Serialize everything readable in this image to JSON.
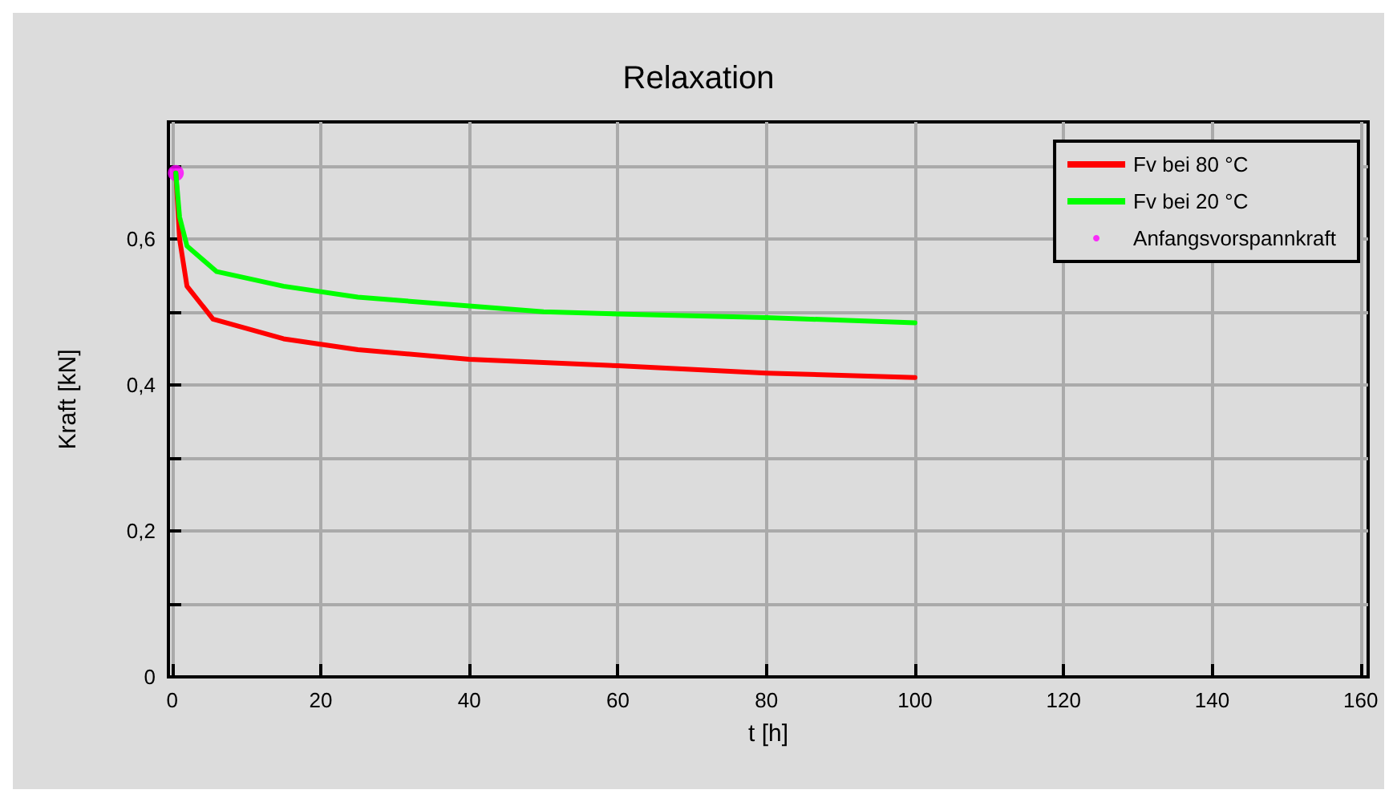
{
  "chart_data": {
    "type": "line",
    "title": "Relaxation",
    "xlabel": "t [h]",
    "ylabel": "Kraft [kN]",
    "xlim": [
      -0.5,
      161
    ],
    "xticks": [
      0,
      20,
      40,
      60,
      80,
      100,
      120,
      140,
      160
    ],
    "ylim": [
      0,
      0.76
    ],
    "yticks": [
      0,
      {
        "value": 0.1,
        "label": null
      },
      {
        "value": 0.2,
        "label": "0,2"
      },
      {
        "value": 0.3,
        "label": null
      },
      {
        "value": 0.4,
        "label": "0,4"
      },
      {
        "value": 0.5,
        "label": null
      },
      {
        "value": 0.6,
        "label": "0,6"
      },
      {
        "value": 0.7,
        "label": null
      }
    ],
    "grid": true,
    "legend": "top right",
    "marker": "none",
    "line_style": "solid",
    "series": [
      {
        "name": "Fv bei 80 °C",
        "color": "#ff0000",
        "x": [
          0.5,
          1,
          2,
          5.5,
          15,
          25,
          40,
          60,
          80,
          100
        ],
        "values": [
          0.69,
          0.6,
          0.535,
          0.49,
          0.463,
          0.448,
          0.435,
          0.426,
          0.416,
          0.41
        ]
      },
      {
        "name": "Fv bei 20 °C",
        "color": "#00ff00",
        "x": [
          0.5,
          1,
          2,
          6,
          15,
          25,
          40,
          50,
          60,
          80,
          100
        ],
        "values": [
          0.69,
          0.63,
          0.59,
          0.555,
          0.535,
          0.52,
          0.508,
          0.5,
          0.497,
          0.492,
          0.485
        ]
      },
      {
        "name": "Anfangsvorspannkraft",
        "type": "scatter",
        "marker": "circle",
        "color": "#ff00ff",
        "x": [
          0.5
        ],
        "values": [
          0.69
        ]
      }
    ]
  }
}
